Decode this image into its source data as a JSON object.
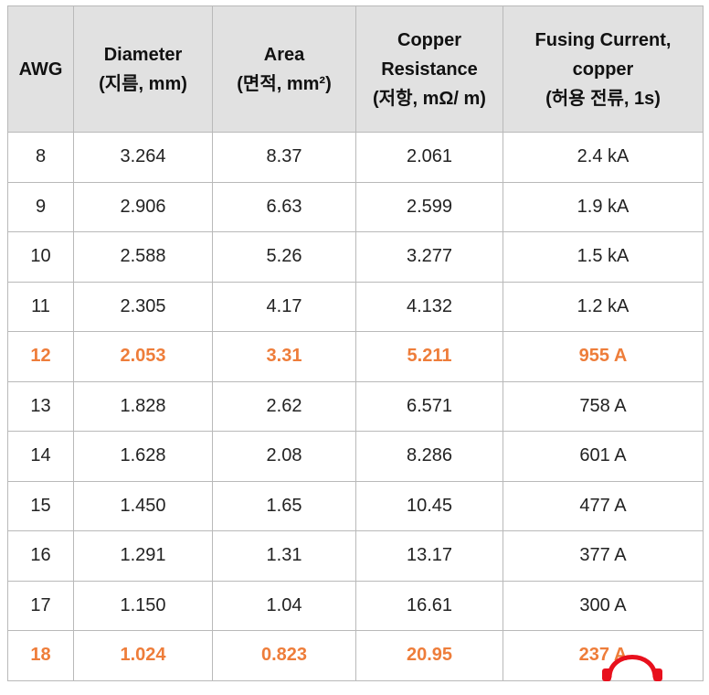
{
  "table": {
    "headers": [
      {
        "lines": [
          "AWG"
        ]
      },
      {
        "lines": [
          "Diameter",
          "(지름, mm)"
        ]
      },
      {
        "lines": [
          "Area",
          "(면적, mm²)"
        ]
      },
      {
        "lines": [
          "Copper",
          "Resistance",
          "(저항, mΩ/ m)"
        ]
      },
      {
        "lines": [
          "Fusing Current,",
          "copper",
          "(허용 전류, 1s)"
        ]
      }
    ],
    "rows": [
      {
        "cells": [
          "8",
          "3.264",
          "8.37",
          "2.061",
          "2.4 kA"
        ],
        "highlight": false
      },
      {
        "cells": [
          "9",
          "2.906",
          "6.63",
          "2.599",
          "1.9 kA"
        ],
        "highlight": false
      },
      {
        "cells": [
          "10",
          "2.588",
          "5.26",
          "3.277",
          "1.5 kA"
        ],
        "highlight": false
      },
      {
        "cells": [
          "11",
          "2.305",
          "4.17",
          "4.132",
          "1.2 kA"
        ],
        "highlight": false
      },
      {
        "cells": [
          "12",
          "2.053",
          "3.31",
          "5.211",
          "955 A"
        ],
        "highlight": true
      },
      {
        "cells": [
          "13",
          "1.828",
          "2.62",
          "6.571",
          "758 A"
        ],
        "highlight": false
      },
      {
        "cells": [
          "14",
          "1.628",
          "2.08",
          "8.286",
          "601 A"
        ],
        "highlight": false
      },
      {
        "cells": [
          "15",
          "1.450",
          "1.65",
          "10.45",
          "477 A"
        ],
        "highlight": false
      },
      {
        "cells": [
          "16",
          "1.291",
          "1.31",
          "13.17",
          "377 A"
        ],
        "highlight": false
      },
      {
        "cells": [
          "17",
          "1.150",
          "1.04",
          "16.61",
          "300 A"
        ],
        "highlight": false
      },
      {
        "cells": [
          "18",
          "1.024",
          "0.823",
          "20.95",
          "237 A"
        ],
        "highlight": true
      }
    ]
  },
  "colors": {
    "highlight": "#ee7d3a",
    "header_bg": "#e1e1e1",
    "watermark": "#e8101d"
  },
  "watermark": {
    "icon": "headphones-logo-icon"
  }
}
